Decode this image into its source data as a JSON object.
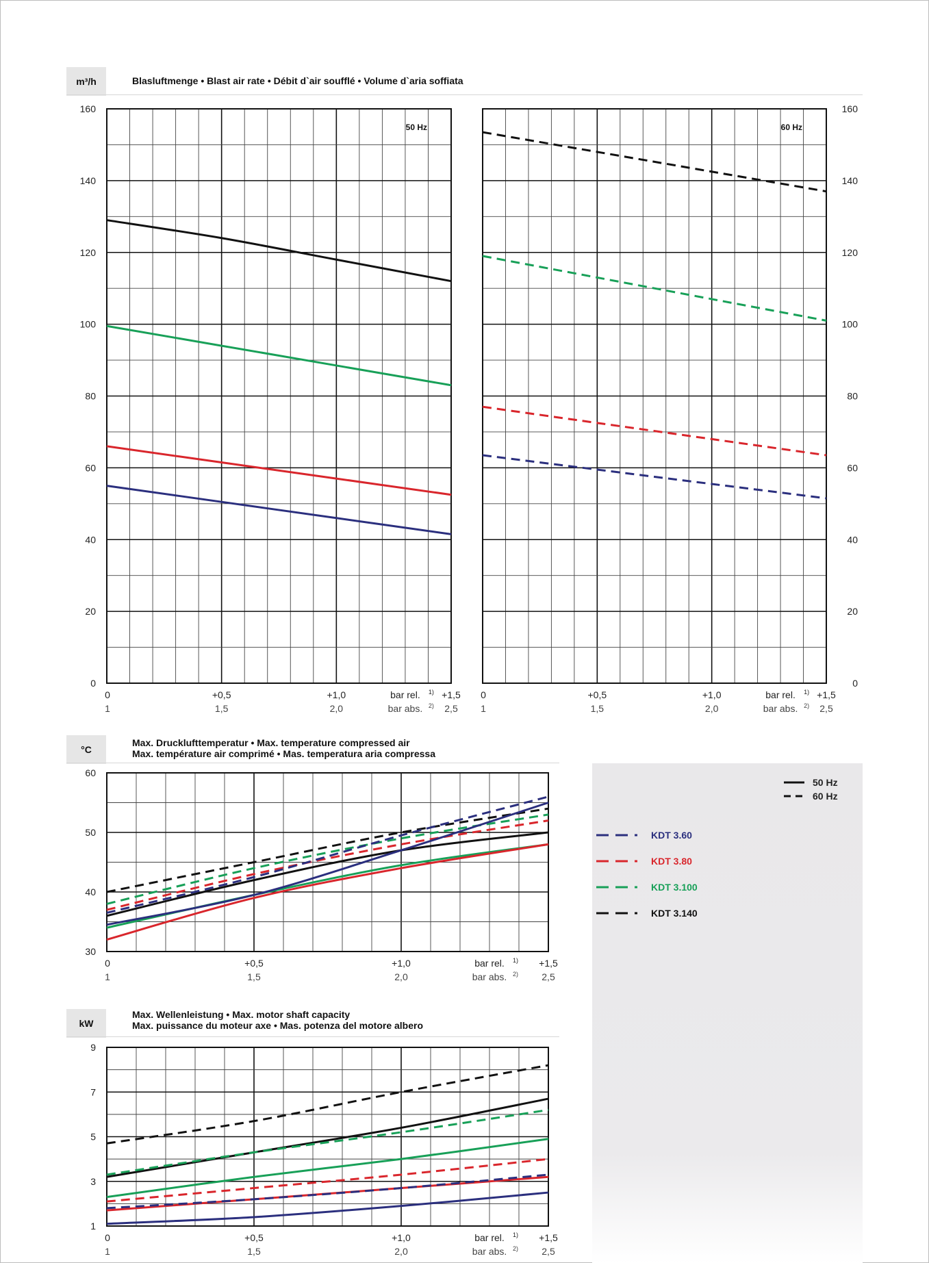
{
  "top": {
    "unit": "m³/h",
    "title": "Blasluftmenge • Blast air rate • Débit d`air soufflé • Volume d`aria soffiata"
  },
  "temp": {
    "unit": "°C",
    "title_line1": "Max. Drucklufttemperatur • Max. temperature compressed air",
    "title_line2": "Max. température air comprimé • Mas. temperatura aria compressa"
  },
  "power": {
    "unit": "kW",
    "title_line1": "Max. Wellenleistung • Max. motor shaft capacity",
    "title_line2": "Max. puissance du moteur axe • Mas. potenza del motore albero"
  },
  "legend": {
    "solid_label": "50 Hz",
    "dashed_label": "60 Hz",
    "items": [
      {
        "label": "KDT 3.60",
        "color": "#2b2f7e"
      },
      {
        "label": "KDT 3.80",
        "color": "#d9262c"
      },
      {
        "label": "KDT 3.100",
        "color": "#18a058"
      },
      {
        "label": "KDT 3.140",
        "color": "#111111"
      }
    ]
  },
  "axis": {
    "rel_ticks": [
      "0",
      "+0,5",
      "+1,0",
      "+1,5"
    ],
    "abs_ticks": [
      "1",
      "1,5",
      "2,0",
      "2,5"
    ],
    "rel_label": "bar rel.",
    "rel_sup": "1)",
    "abs_label": "bar abs.",
    "abs_sup": "2)"
  },
  "chart_data": [
    {
      "id": "air-50hz",
      "type": "line",
      "title": "50 Hz",
      "xlabel": "bar rel. / bar abs.",
      "ylabel": "m³/h",
      "xlim": [
        0,
        1.5
      ],
      "ylim": [
        0,
        160
      ],
      "yticks": [
        0,
        20,
        40,
        60,
        80,
        100,
        120,
        140,
        160
      ],
      "series": [
        {
          "name": "KDT 3.140",
          "color": "#111111",
          "dash": false,
          "x": [
            0,
            0.5,
            1.0,
            1.5
          ],
          "y": [
            129,
            124,
            118,
            112
          ]
        },
        {
          "name": "KDT 3.100",
          "color": "#18a058",
          "dash": false,
          "x": [
            0,
            0.5,
            1.0,
            1.5
          ],
          "y": [
            99.5,
            94,
            88.5,
            83
          ]
        },
        {
          "name": "KDT 3.80",
          "color": "#d9262c",
          "dash": false,
          "x": [
            0,
            0.5,
            1.0,
            1.5
          ],
          "y": [
            66,
            61.5,
            57,
            52.5
          ]
        },
        {
          "name": "KDT 3.60",
          "color": "#2b2f7e",
          "dash": false,
          "x": [
            0,
            0.5,
            1.0,
            1.5
          ],
          "y": [
            55,
            50.5,
            46,
            41.5
          ]
        }
      ]
    },
    {
      "id": "air-60hz",
      "type": "line",
      "title": "60 Hz",
      "xlabel": "bar rel. / bar abs.",
      "ylabel": "m³/h",
      "xlim": [
        0,
        1.5
      ],
      "ylim": [
        0,
        160
      ],
      "yticks": [
        0,
        20,
        40,
        60,
        80,
        100,
        120,
        140,
        160
      ],
      "series": [
        {
          "name": "KDT 3.140",
          "color": "#111111",
          "dash": true,
          "x": [
            0,
            0.5,
            1.0,
            1.5
          ],
          "y": [
            153.5,
            148,
            142.5,
            137
          ]
        },
        {
          "name": "KDT 3.100",
          "color": "#18a058",
          "dash": true,
          "x": [
            0,
            0.5,
            1.0,
            1.5
          ],
          "y": [
            119,
            113,
            107,
            101
          ]
        },
        {
          "name": "KDT 3.80",
          "color": "#d9262c",
          "dash": true,
          "x": [
            0,
            0.5,
            1.0,
            1.5
          ],
          "y": [
            77,
            72.5,
            68,
            63.5
          ]
        },
        {
          "name": "KDT 3.60",
          "color": "#2b2f7e",
          "dash": true,
          "x": [
            0,
            0.5,
            1.0,
            1.5
          ],
          "y": [
            63.5,
            59.5,
            55.5,
            51.5
          ]
        }
      ]
    },
    {
      "id": "temperature",
      "type": "line",
      "title": "Max. Drucklufttemperatur",
      "xlabel": "bar rel. / bar abs.",
      "ylabel": "°C",
      "xlim": [
        0,
        1.5
      ],
      "ylim": [
        30,
        60
      ],
      "yticks": [
        30,
        40,
        50,
        60
      ],
      "series": [
        {
          "name": "KDT 3.140 50 Hz",
          "color": "#111111",
          "dash": false,
          "x": [
            0,
            0.5,
            1.0,
            1.5
          ],
          "y": [
            36,
            42,
            47,
            50
          ]
        },
        {
          "name": "KDT 3.140 60 Hz",
          "color": "#111111",
          "dash": true,
          "x": [
            0,
            0.5,
            1.0,
            1.5
          ],
          "y": [
            40,
            45,
            50,
            54
          ]
        },
        {
          "name": "KDT 3.100 50 Hz",
          "color": "#18a058",
          "dash": false,
          "x": [
            0,
            0.5,
            1.0,
            1.5
          ],
          "y": [
            34,
            39.5,
            44.5,
            48
          ]
        },
        {
          "name": "KDT 3.100 60 Hz",
          "color": "#18a058",
          "dash": true,
          "x": [
            0,
            0.5,
            1.0,
            1.5
          ],
          "y": [
            38,
            44,
            49,
            53
          ]
        },
        {
          "name": "KDT 3.80 50 Hz",
          "color": "#d9262c",
          "dash": false,
          "x": [
            0,
            0.5,
            1.0,
            1.5
          ],
          "y": [
            32,
            39,
            44,
            48
          ]
        },
        {
          "name": "KDT 3.80 60 Hz",
          "color": "#d9262c",
          "dash": true,
          "x": [
            0,
            0.5,
            1.0,
            1.5
          ],
          "y": [
            37,
            43,
            48,
            52
          ]
        },
        {
          "name": "KDT 3.60 50 Hz",
          "color": "#2b2f7e",
          "dash": false,
          "x": [
            0,
            0.5,
            1.0,
            1.5
          ],
          "y": [
            34.5,
            39.5,
            47,
            55
          ]
        },
        {
          "name": "KDT 3.60 60 Hz",
          "color": "#2b2f7e",
          "dash": true,
          "x": [
            0,
            0.5,
            1.0,
            1.5
          ],
          "y": [
            36.5,
            42.5,
            49.5,
            56
          ]
        }
      ]
    },
    {
      "id": "power",
      "type": "line",
      "title": "Max. Wellenleistung",
      "xlabel": "bar rel. / bar abs.",
      "ylabel": "kW",
      "xlim": [
        0,
        1.5
      ],
      "ylim": [
        1,
        9
      ],
      "yticks": [
        1,
        3,
        5,
        7,
        9
      ],
      "series": [
        {
          "name": "KDT 3.140 50 Hz",
          "color": "#111111",
          "dash": false,
          "x": [
            0,
            0.5,
            1.0,
            1.5
          ],
          "y": [
            3.2,
            4.3,
            5.4,
            6.7
          ]
        },
        {
          "name": "KDT 3.140 60 Hz",
          "color": "#111111",
          "dash": true,
          "x": [
            0,
            0.5,
            1.0,
            1.5
          ],
          "y": [
            4.7,
            5.7,
            7.0,
            8.2
          ]
        },
        {
          "name": "KDT 3.100 50 Hz",
          "color": "#18a058",
          "dash": false,
          "x": [
            0,
            0.5,
            1.0,
            1.5
          ],
          "y": [
            2.3,
            3.2,
            4.0,
            4.9
          ]
        },
        {
          "name": "KDT 3.100 60 Hz",
          "color": "#18a058",
          "dash": true,
          "x": [
            0,
            0.5,
            1.0,
            1.5
          ],
          "y": [
            3.3,
            4.3,
            5.2,
            6.2
          ]
        },
        {
          "name": "KDT 3.80 50 Hz",
          "color": "#d9262c",
          "dash": false,
          "x": [
            0,
            0.5,
            1.0,
            1.5
          ],
          "y": [
            1.7,
            2.2,
            2.7,
            3.2
          ]
        },
        {
          "name": "KDT 3.80 60 Hz",
          "color": "#d9262c",
          "dash": true,
          "x": [
            0,
            0.5,
            1.0,
            1.5
          ],
          "y": [
            2.1,
            2.7,
            3.3,
            4.0
          ]
        },
        {
          "name": "KDT 3.60 50 Hz",
          "color": "#2b2f7e",
          "dash": false,
          "x": [
            0,
            0.5,
            1.0,
            1.5
          ],
          "y": [
            1.1,
            1.4,
            1.9,
            2.5
          ]
        },
        {
          "name": "KDT 3.60 60 Hz",
          "color": "#2b2f7e",
          "dash": true,
          "x": [
            0,
            0.5,
            1.0,
            1.5
          ],
          "y": [
            1.8,
            2.2,
            2.7,
            3.3
          ]
        }
      ]
    }
  ]
}
